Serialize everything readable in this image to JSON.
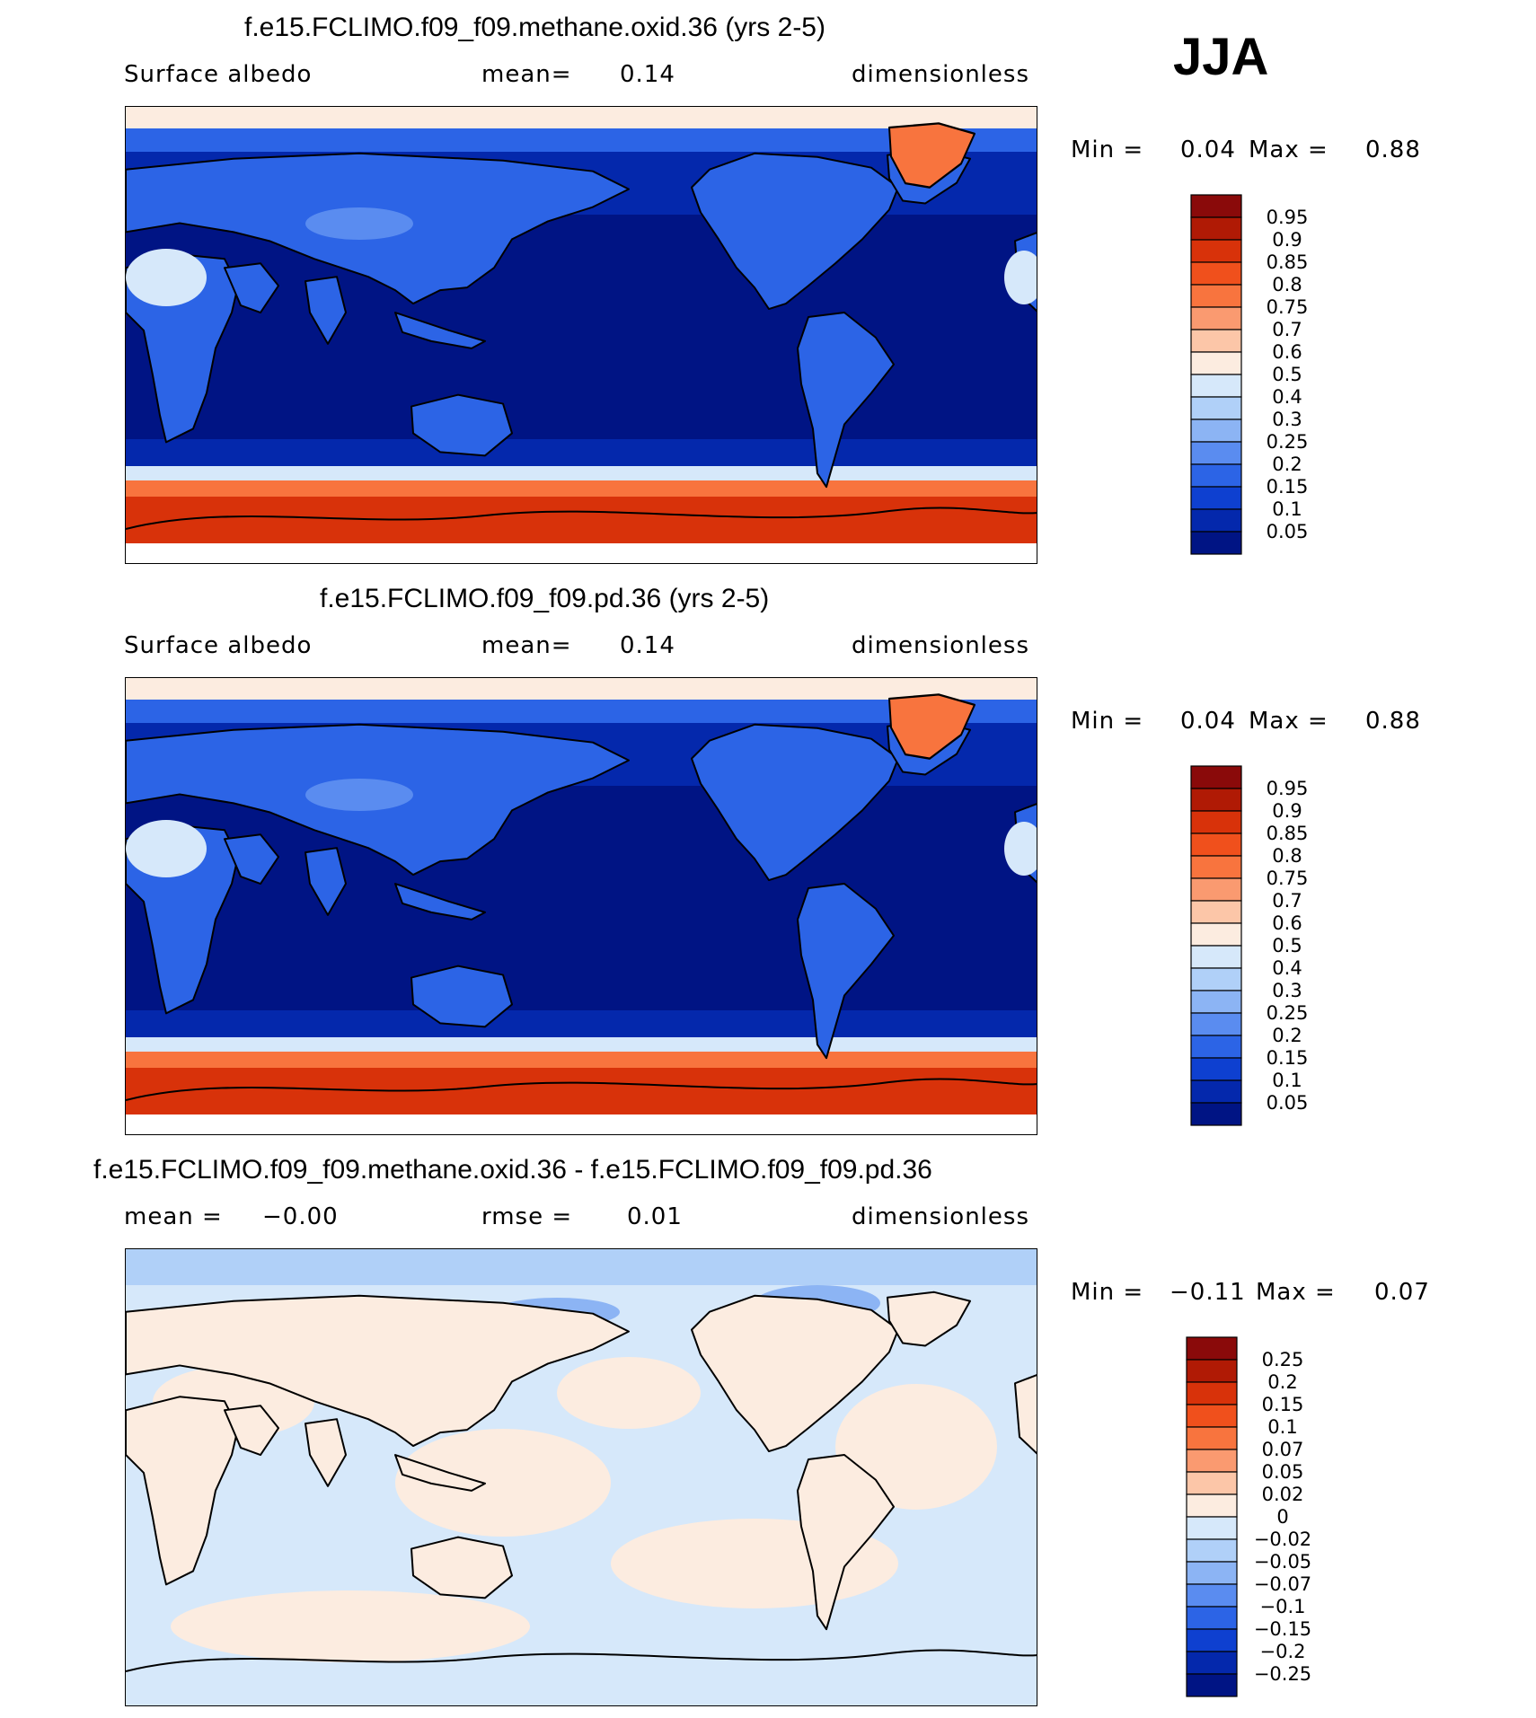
{
  "season": "JJA",
  "panels": [
    {
      "title": "f.e15.FCLIMO.f09_f09.methane.oxid.36 (yrs 2-5)",
      "left_label": "Surface albedo",
      "mid_label": "mean=",
      "mid_value": "0.14",
      "right_label": "dimensionless",
      "min_label": "Min =",
      "min_value": "0.04",
      "max_label": "Max =",
      "max_value": "0.88",
      "kind": "field",
      "colorbar": {
        "labels": [
          "0.95",
          "0.9",
          "0.85",
          "0.8",
          "0.75",
          "0.7",
          "0.6",
          "0.5",
          "0.4",
          "0.3",
          "0.25",
          "0.2",
          "0.15",
          "0.1",
          "0.05"
        ],
        "colors": [
          "#8a0a0a",
          "#b01a05",
          "#d8320a",
          "#f0501c",
          "#f8743e",
          "#fa9a70",
          "#fcc6a8",
          "#fcece0",
          "#d6e8fa",
          "#b0d0f8",
          "#8cb4f4",
          "#5a8cf0",
          "#2c64e6",
          "#0e40d0",
          "#0428ac",
          "#001484"
        ]
      }
    },
    {
      "title": "f.e15.FCLIMO.f09_f09.pd.36 (yrs 2-5)",
      "left_label": "Surface albedo",
      "mid_label": "mean=",
      "mid_value": "0.14",
      "right_label": "dimensionless",
      "min_label": "Min =",
      "min_value": "0.04",
      "max_label": "Max =",
      "max_value": "0.88",
      "kind": "field",
      "colorbar": {
        "labels": [
          "0.95",
          "0.9",
          "0.85",
          "0.8",
          "0.75",
          "0.7",
          "0.6",
          "0.5",
          "0.4",
          "0.3",
          "0.25",
          "0.2",
          "0.15",
          "0.1",
          "0.05"
        ],
        "colors": [
          "#8a0a0a",
          "#b01a05",
          "#d8320a",
          "#f0501c",
          "#f8743e",
          "#fa9a70",
          "#fcc6a8",
          "#fcece0",
          "#d6e8fa",
          "#b0d0f8",
          "#8cb4f4",
          "#5a8cf0",
          "#2c64e6",
          "#0e40d0",
          "#0428ac",
          "#001484"
        ]
      }
    },
    {
      "title": "f.e15.FCLIMO.f09_f09.methane.oxid.36 - f.e15.FCLIMO.f09_f09.pd.36",
      "left_label": "mean =",
      "left_value": "−0.00",
      "mid_label": "rmse =",
      "mid_value": "0.01",
      "right_label": "dimensionless",
      "min_label": "Min =",
      "min_value": "−0.11",
      "max_label": "Max =",
      "max_value": "0.07",
      "kind": "diff",
      "colorbar": {
        "labels": [
          "0.25",
          "0.2",
          "0.15",
          "0.1",
          "0.07",
          "0.05",
          "0.02",
          "0",
          "−0.02",
          "−0.05",
          "−0.07",
          "−0.1",
          "−0.15",
          "−0.2",
          "−0.25"
        ],
        "colors": [
          "#8a0a0a",
          "#b01a05",
          "#d8320a",
          "#f0501c",
          "#f8743e",
          "#fa9a70",
          "#fcc6a8",
          "#fcece0",
          "#d6e8fa",
          "#b0d0f8",
          "#8cb4f4",
          "#5a8cf0",
          "#2c64e6",
          "#0e40d0",
          "#0428ac",
          "#001484"
        ]
      }
    }
  ]
}
